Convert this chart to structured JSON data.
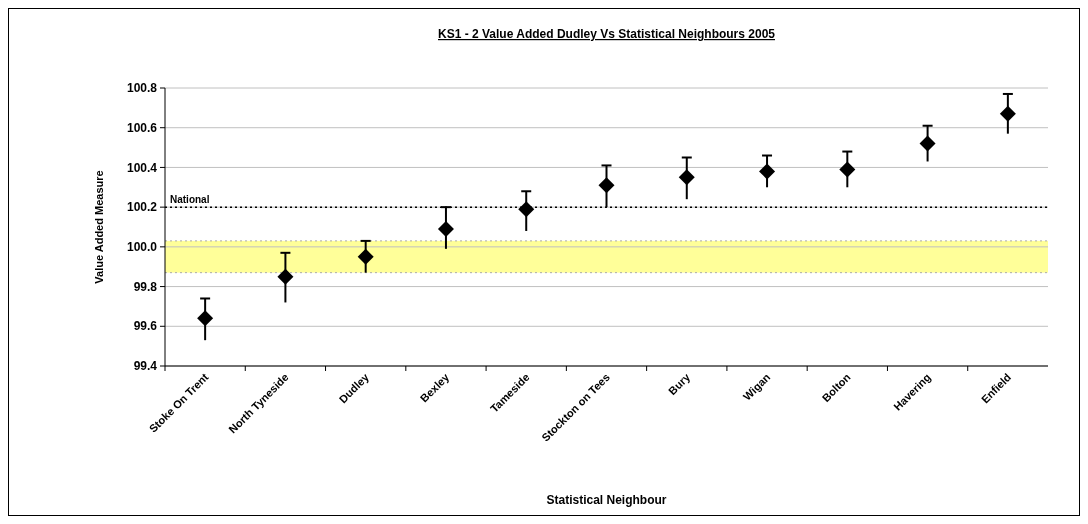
{
  "chart_data": {
    "type": "scatter",
    "title": "KS1 - 2 Value Added Dudley Vs Statistical Neighbours 2005",
    "xlabel": "Statistical Neighbour",
    "ylabel": "Value Added Measure",
    "categories": [
      "Stoke On Trent",
      "North Tyneside",
      "Dudley",
      "Bexley",
      "Tameside",
      "Stockton on Tees",
      "Bury",
      "Wigan",
      "Bolton",
      "Havering",
      "Enfield"
    ],
    "values": [
      99.64,
      99.85,
      99.95,
      100.09,
      100.19,
      100.31,
      100.35,
      100.38,
      100.39,
      100.52,
      100.67
    ],
    "errors": [
      [
        99.53,
        99.74
      ],
      [
        99.72,
        99.97
      ],
      [
        99.87,
        100.03
      ],
      [
        99.99,
        100.2
      ],
      [
        100.08,
        100.28
      ],
      [
        100.2,
        100.41
      ],
      [
        100.24,
        100.45
      ],
      [
        100.3,
        100.46
      ],
      [
        100.3,
        100.48
      ],
      [
        100.43,
        100.61
      ],
      [
        100.57,
        100.77
      ]
    ],
    "color": "#000000",
    "marker": "diamond",
    "ylim": [
      99.4,
      100.8
    ],
    "yticks": [
      {
        "value": 99.4,
        "label": "99.4"
      },
      {
        "value": 99.6,
        "label": "99.6"
      },
      {
        "value": 99.8,
        "label": "99.8"
      },
      {
        "value": 100,
        "label": "100.0"
      },
      {
        "value": 100.2,
        "label": "100.2"
      },
      {
        "value": 100.4,
        "label": "100.4"
      },
      {
        "value": 100.6,
        "label": "100.6"
      },
      {
        "value": 100.8,
        "label": "100.8"
      }
    ],
    "grid": "y",
    "ref_lines": [
      {
        "axis": "y",
        "value": 100.2,
        "label": "National",
        "color": "#000000",
        "line_style": "dotted"
      },
      {
        "axis": "y",
        "value": 99.87,
        "color": "#aaaaaa",
        "line_style": "dotted"
      },
      {
        "axis": "y",
        "value": 100.03,
        "color": "#aaaaaa",
        "line_style": "dotted"
      }
    ],
    "bands": [
      {
        "axis": "y",
        "from": 99.87,
        "to": 100.03,
        "color": "#ffff99"
      }
    ]
  }
}
